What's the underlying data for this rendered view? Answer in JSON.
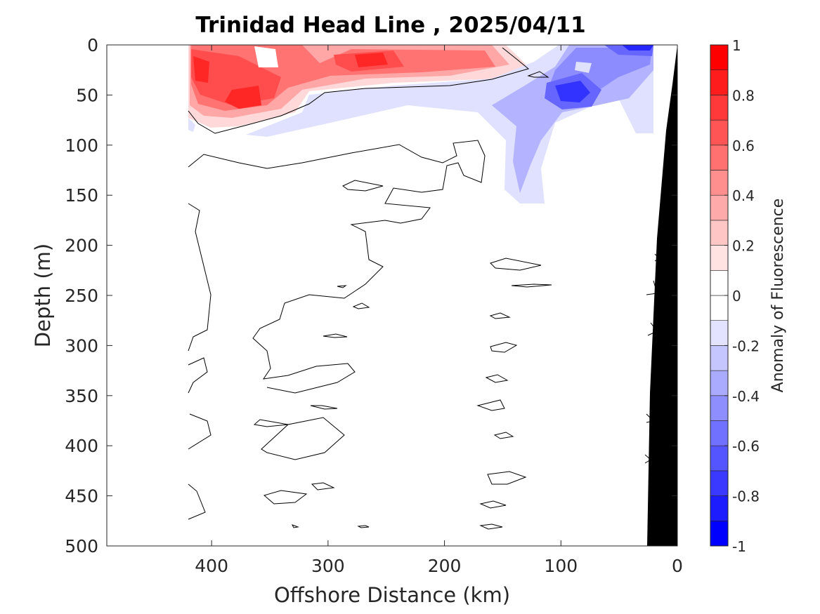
{
  "chart_data": {
    "type": "heatmap",
    "subtype": "filled-contour section",
    "title": "Trinidad Head Line , 2025/04/11",
    "xlabel": "Offshore Distance (km)",
    "ylabel": "Depth (m)",
    "xlim": [
      490,
      0
    ],
    "x_reversed": true,
    "ylim": [
      0,
      500
    ],
    "y_reversed": true,
    "xticks": [
      400,
      300,
      200,
      100,
      0
    ],
    "yticks": [
      0,
      50,
      100,
      150,
      200,
      250,
      300,
      350,
      400,
      450,
      500
    ],
    "colorbar": {
      "label": "Anomaly of Fluorescence",
      "limits": [
        -1,
        1
      ],
      "ticks": [
        1,
        0.8,
        0.6,
        0.4,
        0.2,
        0,
        -0.2,
        -0.4,
        -0.6,
        -0.8,
        -1
      ],
      "levels": [
        -1,
        -0.9,
        -0.8,
        -0.7,
        -0.6,
        -0.5,
        -0.4,
        -0.3,
        -0.2,
        -0.1,
        0,
        0.1,
        0.2,
        0.3,
        0.4,
        0.5,
        0.6,
        0.7,
        0.8,
        0.9,
        1
      ],
      "low_color": "#0000ff",
      "mid_color": "#ffffff",
      "high_color": "#ff0000"
    },
    "data_extent_km": [
      422,
      0
    ],
    "features": [
      {
        "name": "surface positive anomaly",
        "x_center_km": 390,
        "depth_center_m": 30,
        "value": 0.85
      },
      {
        "name": "surface positive anomaly",
        "x_center_km": 265,
        "depth_center_m": 15,
        "value": 0.7
      },
      {
        "name": "subsurface negative anomaly",
        "x_center_km": 92,
        "depth_center_m": 45,
        "value": -0.85
      },
      {
        "name": "surface negative anomaly",
        "x_center_km": 25,
        "depth_center_m": 2,
        "value": -0.8
      },
      {
        "name": "negative plume",
        "x_center_km": 135,
        "depth_center_m": 130,
        "value": -0.2
      }
    ],
    "bathymetry_color": "#000000"
  }
}
